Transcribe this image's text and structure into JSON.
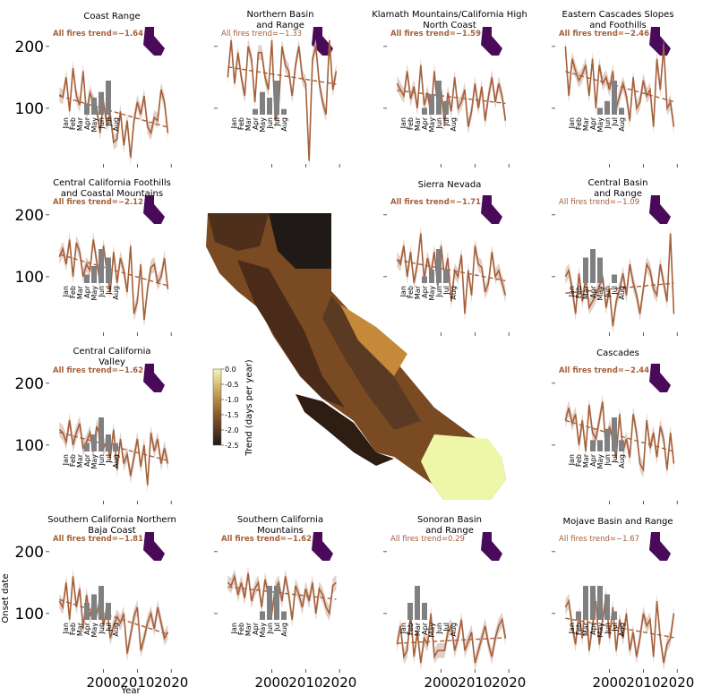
{
  "figure": {
    "ylabel": "Onset date",
    "xlabel": "Year",
    "colorbar": {
      "label": "Trend (days per year)",
      "ticks": [
        "0.0",
        "-0.5",
        "-1.0",
        "-1.5",
        "-2.0",
        "-2.5"
      ],
      "range": [
        -2.5,
        0.0
      ]
    }
  },
  "colors": {
    "line": "#a5603a",
    "band": "#dbc3b8",
    "bars": "#808080",
    "state": "#4a0a5a",
    "highlight": "#f4e62c"
  },
  "chart_data": [
    {
      "type": "line",
      "title": "Coast Range",
      "annotation": "All fires trend=−1.64",
      "trend": -1.64,
      "significant": true,
      "y": [
        122,
        118,
        150,
        95,
        165,
        120,
        105,
        160,
        90,
        125,
        110,
        100,
        60,
        110,
        75,
        90,
        45,
        50,
        95,
        40,
        80,
        20,
        80,
        110,
        90,
        120,
        70,
        60,
        85,
        80,
        130,
        110,
        60
      ],
      "hist": [
        0,
        0,
        0,
        2,
        3,
        4,
        6,
        0
      ]
    },
    {
      "type": "line",
      "title": "Northern Basin and Range",
      "annotation": "All fires trend=−1.33",
      "trend": -1.33,
      "significant": false,
      "y": [
        150,
        210,
        140,
        190,
        150,
        120,
        200,
        180,
        110,
        190,
        190,
        150,
        130,
        210,
        80,
        100,
        200,
        170,
        160,
        120,
        170,
        200,
        150,
        140,
        15,
        180,
        200,
        140,
        110,
        90,
        210,
        130,
        160
      ],
      "hist": [
        0,
        0,
        0,
        1,
        4,
        3,
        6,
        1
      ]
    },
    {
      "type": "line",
      "title": "Klamath Mountains/California High North Coast",
      "annotation": "All fires trend=−1.59",
      "trend": -1.59,
      "significant": true,
      "y": [
        140,
        130,
        120,
        160,
        115,
        135,
        100,
        170,
        105,
        125,
        90,
        160,
        100,
        130,
        75,
        125,
        95,
        150,
        100,
        110,
        130,
        70,
        95,
        140,
        100,
        135,
        80,
        120,
        150,
        110,
        140,
        120,
        80
      ],
      "hist": [
        0,
        0,
        0,
        1,
        3,
        5,
        2,
        0
      ]
    },
    {
      "type": "line",
      "title": "Eastern Cascades Slopes and Foothills",
      "annotation": "All fires trend=−2.46",
      "trend": -2.46,
      "significant": true,
      "y": [
        200,
        120,
        180,
        160,
        145,
        155,
        170,
        120,
        180,
        100,
        170,
        140,
        150,
        130,
        160,
        100,
        120,
        140,
        120,
        80,
        150,
        100,
        110,
        145,
        120,
        130,
        70,
        180,
        130,
        200,
        100,
        110,
        70
      ],
      "hist": [
        0,
        0,
        0,
        0,
        1,
        2,
        5,
        1
      ]
    },
    {
      "type": "line",
      "title": "Central California Foothills and Coastal Mountains",
      "annotation": "All fires trend=−2.12",
      "trend": -2.12,
      "significant": true,
      "y": [
        132,
        145,
        120,
        160,
        100,
        155,
        140,
        100,
        120,
        110,
        160,
        125,
        90,
        150,
        110,
        75,
        140,
        90,
        130,
        110,
        75,
        150,
        40,
        60,
        120,
        30,
        80,
        115,
        120,
        90,
        100,
        130,
        80
      ],
      "hist": [
        0,
        0,
        0,
        1,
        2,
        4,
        3,
        0
      ]
    },
    {
      "type": "line",
      "title": "Sierra Nevada",
      "annotation": "All fires trend=−1.71",
      "trend": -1.71,
      "significant": true,
      "y": [
        128,
        120,
        150,
        100,
        140,
        90,
        120,
        170,
        95,
        130,
        105,
        140,
        85,
        150,
        100,
        130,
        60,
        110,
        100,
        135,
        40,
        110,
        70,
        150,
        120,
        115,
        75,
        90,
        140,
        100,
        110,
        90,
        70
      ],
      "hist": [
        0,
        0,
        0,
        1,
        2,
        5,
        2,
        0
      ]
    },
    {
      "type": "line",
      "title": "Central Basin and Range",
      "annotation": "All fires trend=−1.09",
      "trend": -1.09,
      "significant": false,
      "y": [
        100,
        110,
        80,
        40,
        105,
        60,
        100,
        50,
        60,
        70,
        85,
        100,
        50,
        80,
        20,
        60,
        80,
        105,
        70,
        120,
        90,
        70,
        40,
        80,
        120,
        110,
        80,
        70,
        120,
        90,
        60,
        170,
        40
      ],
      "hist": [
        0,
        0,
        3,
        4,
        3,
        0,
        1,
        0
      ]
    },
    {
      "type": "line",
      "title": "Central California Valley",
      "annotation": "All fires trend=−1.62",
      "trend": -1.62,
      "significant": true,
      "y": [
        125,
        120,
        105,
        140,
        100,
        120,
        135,
        95,
        105,
        120,
        90,
        130,
        115,
        95,
        105,
        80,
        125,
        60,
        110,
        70,
        85,
        50,
        80,
        110,
        65,
        100,
        35,
        120,
        90,
        110,
        70,
        95,
        70
      ],
      "hist": [
        0,
        0,
        0,
        1,
        2,
        4,
        2,
        1
      ]
    },
    {
      "type": "line",
      "title": "Cascades",
      "annotation": "All fires trend=−2.44",
      "trend": -2.44,
      "significant": true,
      "y": [
        140,
        160,
        135,
        150,
        100,
        140,
        90,
        165,
        120,
        110,
        140,
        170,
        90,
        130,
        110,
        80,
        150,
        90,
        110,
        80,
        150,
        120,
        70,
        60,
        140,
        95,
        120,
        80,
        130,
        110,
        60,
        120,
        70
      ],
      "hist": [
        0,
        0,
        0,
        1,
        1,
        2,
        3,
        1
      ]
    },
    {
      "type": "line",
      "title": "Southern California Northern Baja Coast",
      "annotation": "All fires trend=−1.81",
      "trend": -1.81,
      "significant": true,
      "y": [
        120,
        110,
        150,
        90,
        160,
        110,
        140,
        75,
        130,
        95,
        115,
        100,
        120,
        80,
        110,
        60,
        80,
        95,
        85,
        100,
        35,
        65,
        95,
        110,
        40,
        60,
        85,
        100,
        75,
        110,
        85,
        60,
        70
      ],
      "hist": [
        0,
        0,
        0,
        2,
        3,
        4,
        2,
        0
      ]
    },
    {
      "type": "line",
      "title": "Southern California Mountains",
      "annotation": "All fires trend=−1.62",
      "trend": -1.62,
      "significant": true,
      "y": [
        150,
        145,
        160,
        130,
        150,
        125,
        165,
        120,
        140,
        150,
        110,
        155,
        130,
        100,
        140,
        150,
        120,
        160,
        130,
        90,
        145,
        130,
        110,
        140,
        120,
        150,
        100,
        140,
        130,
        110,
        100,
        145,
        150
      ],
      "hist": [
        0,
        0,
        0,
        0,
        1,
        4,
        4,
        1
      ]
    },
    {
      "type": "line",
      "title": "Sonoran Basin and Range",
      "annotation": "All fires trend=0.29",
      "trend": 0.29,
      "significant": false,
      "y": [
        50,
        80,
        30,
        40,
        100,
        30,
        70,
        20,
        60,
        50,
        100,
        30,
        40,
        40,
        40,
        70,
        80,
        40,
        60,
        90,
        40,
        55,
        70,
        20,
        40,
        60,
        80,
        50,
        30,
        60,
        80,
        90,
        60
      ],
      "hist": [
        0,
        2,
        4,
        2,
        0,
        0,
        0,
        0
      ]
    },
    {
      "type": "line",
      "title": "Mojave Basin and Range",
      "annotation": "All fires trend=−1.67",
      "trend": -1.67,
      "significant": false,
      "y": [
        110,
        120,
        80,
        50,
        100,
        60,
        130,
        40,
        80,
        120,
        50,
        90,
        130,
        60,
        110,
        40,
        90,
        60,
        100,
        40,
        70,
        30,
        60,
        100,
        80,
        90,
        30,
        120,
        60,
        20,
        50,
        60,
        100
      ],
      "hist": [
        0,
        1,
        4,
        4,
        4,
        3,
        1,
        0
      ]
    }
  ],
  "year_ticks": [
    "2000",
    "2010",
    "2020"
  ],
  "y_ticks": [
    "100",
    "200"
  ],
  "month_labels": [
    "Jan",
    "Feb",
    "Mar",
    "Apr",
    "May",
    "Jun",
    "Jul",
    "Aug"
  ]
}
